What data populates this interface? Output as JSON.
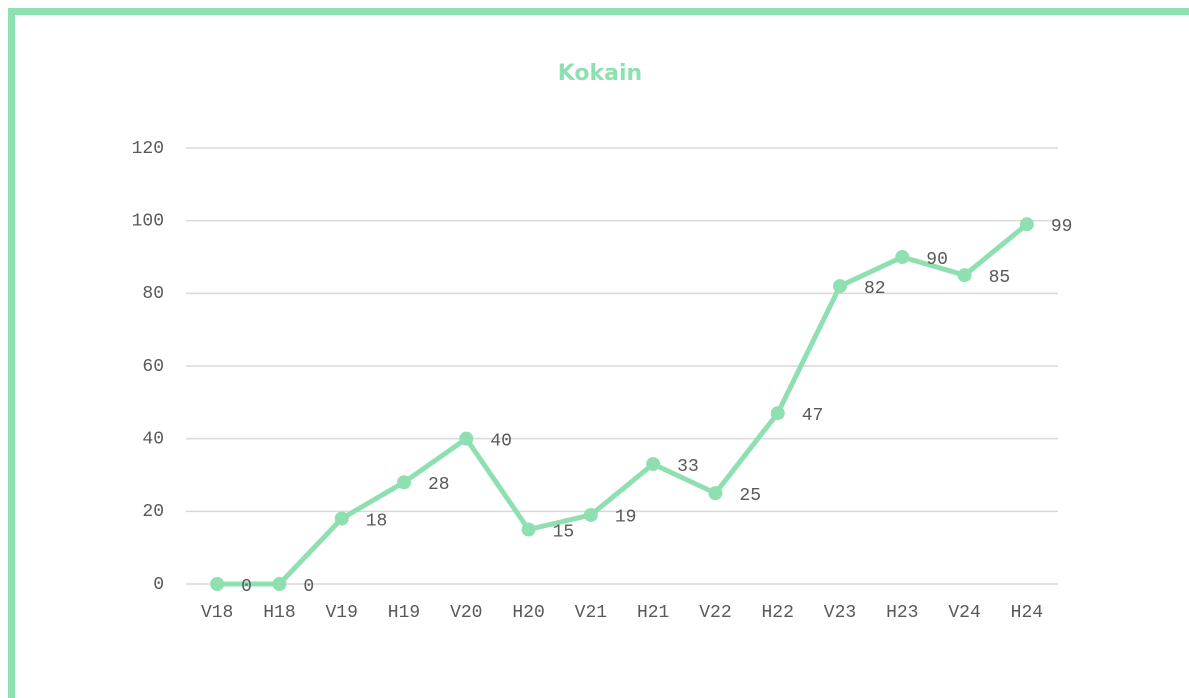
{
  "chart_data": {
    "type": "line",
    "title": "Kokain",
    "categories": [
      "V18",
      "H18",
      "V19",
      "H19",
      "V20",
      "H20",
      "V21",
      "H21",
      "V22",
      "H22",
      "V23",
      "H23",
      "V24",
      "H24"
    ],
    "series": [
      {
        "name": "Kokain",
        "color": "#8fe0b0",
        "values": [
          0,
          0,
          18,
          28,
          40,
          15,
          19,
          33,
          25,
          47,
          82,
          90,
          85,
          99
        ]
      }
    ],
    "ylim": [
      0,
      120
    ],
    "yticks": [
      0,
      20,
      40,
      60,
      80,
      100,
      120
    ],
    "grid": true
  }
}
